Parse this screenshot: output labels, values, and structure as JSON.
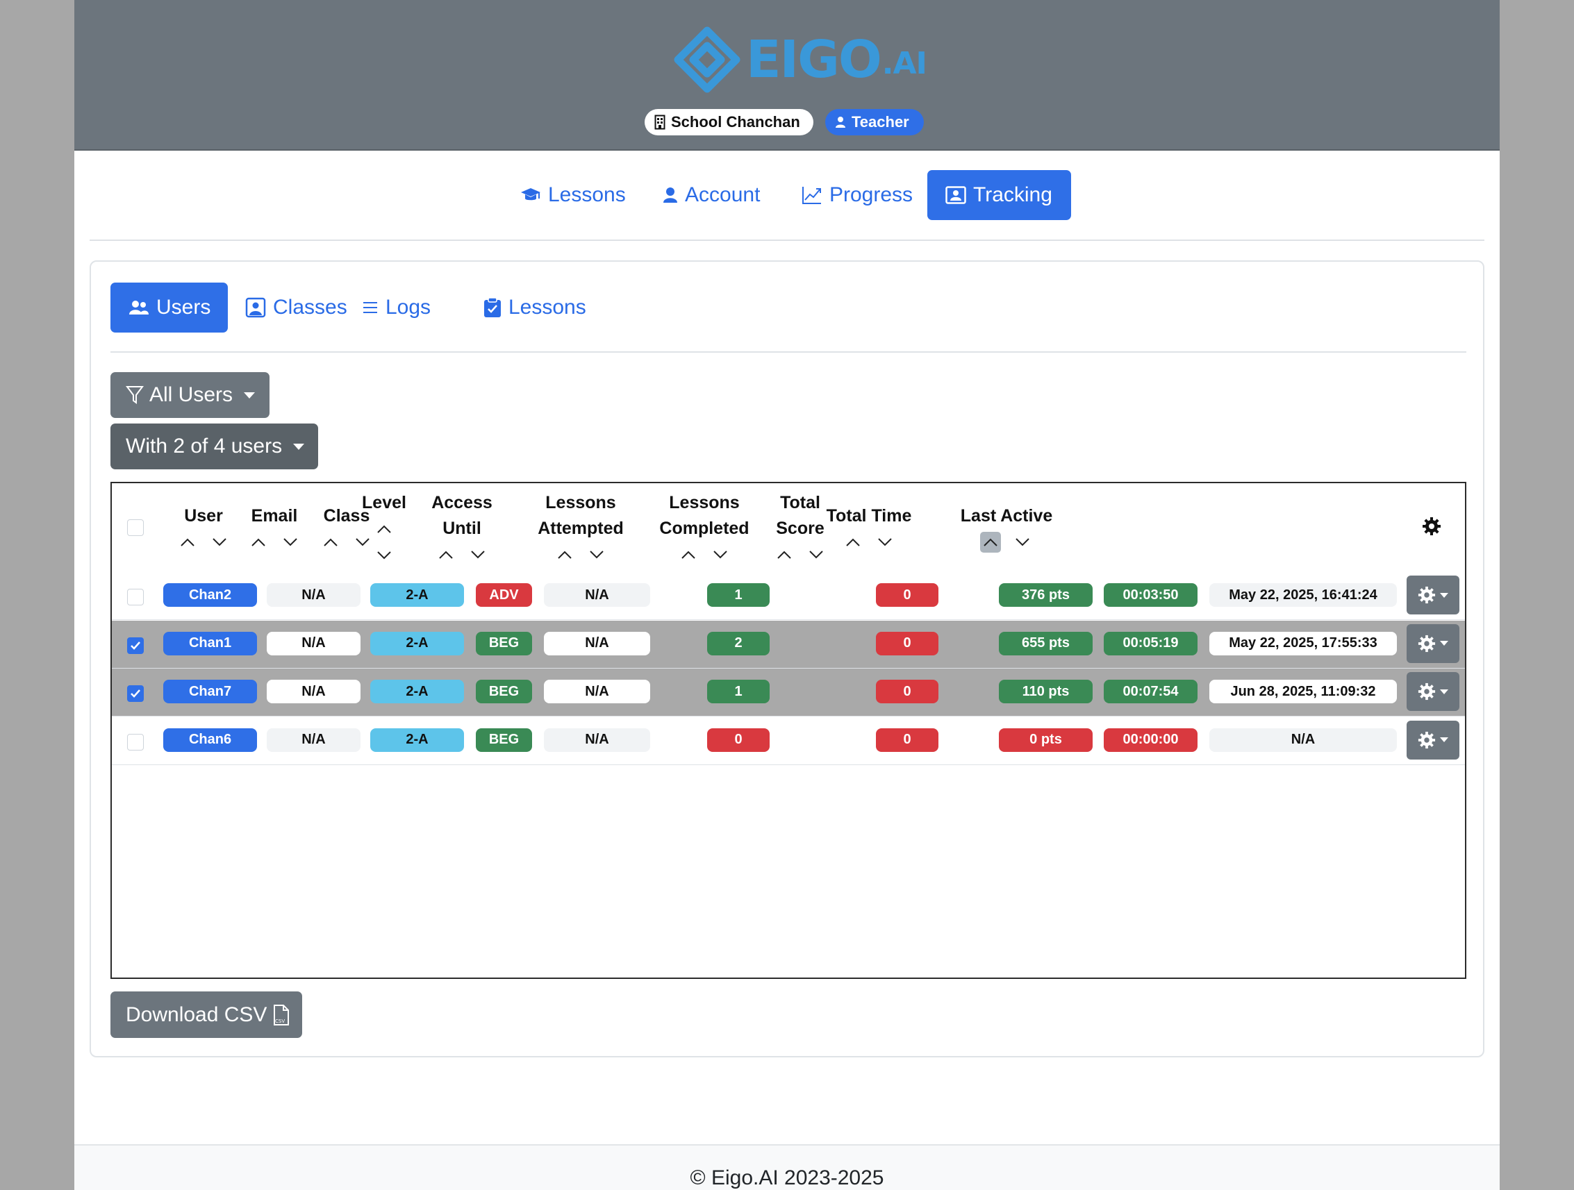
{
  "brand": {
    "name": "EIGO",
    "suffix": ".AI",
    "color": "#3a98d9"
  },
  "header": {
    "school": "School Chanchan",
    "role": "Teacher"
  },
  "nav": {
    "lessons": "Lessons",
    "account": "Account",
    "progress": "Progress",
    "tracking": "Tracking",
    "active": "Tracking"
  },
  "subnav": {
    "users": "Users",
    "classes": "Classes",
    "logs": "Logs",
    "lessons": "Lessons",
    "active": "Users"
  },
  "filters": {
    "users_filter": "All Users",
    "selection": "With 2 of 4 users"
  },
  "table": {
    "columns": {
      "user": "User",
      "email": "Email",
      "class": "Class",
      "level": "Level",
      "access_until_1": "Access",
      "access_until_2": "Until",
      "attempted_1": "Lessons",
      "attempted_2": "Attempted",
      "completed_1": "Lessons",
      "completed_2": "Completed",
      "score_1": "Total",
      "score_2": "Score",
      "time": "Total Time",
      "last_active": "Last Active"
    },
    "sorted_by": "Last Active ascending",
    "rows": [
      {
        "selected": false,
        "user": "Chan2",
        "email": "N/A",
        "class": "2-A",
        "level": "ADV",
        "access_until": "N/A",
        "attempted": "1",
        "completed": "0",
        "score": "376 pts",
        "time": "00:03:50",
        "last_active": "May 22, 2025, 16:41:24"
      },
      {
        "selected": true,
        "user": "Chan1",
        "email": "N/A",
        "class": "2-A",
        "level": "BEG",
        "access_until": "N/A",
        "attempted": "2",
        "completed": "0",
        "score": "655 pts",
        "time": "00:05:19",
        "last_active": "May 22, 2025, 17:55:33"
      },
      {
        "selected": true,
        "user": "Chan7",
        "email": "N/A",
        "class": "2-A",
        "level": "BEG",
        "access_until": "N/A",
        "attempted": "1",
        "completed": "0",
        "score": "110 pts",
        "time": "00:07:54",
        "last_active": "Jun 28, 2025, 11:09:32"
      },
      {
        "selected": false,
        "user": "Chan6",
        "email": "N/A",
        "class": "2-A",
        "level": "BEG",
        "access_until": "N/A",
        "attempted": "0",
        "completed": "0",
        "score": "0 pts",
        "time": "00:00:00",
        "last_active": "N/A"
      }
    ]
  },
  "download_label": "Download CSV",
  "footer": "© Eigo.AI 2023-2025",
  "colors": {
    "primary": "#2f6fe7",
    "secondary": "#6c757d",
    "success": "#3a8a55",
    "danger": "#d9393f",
    "info": "#5dc4ea"
  }
}
